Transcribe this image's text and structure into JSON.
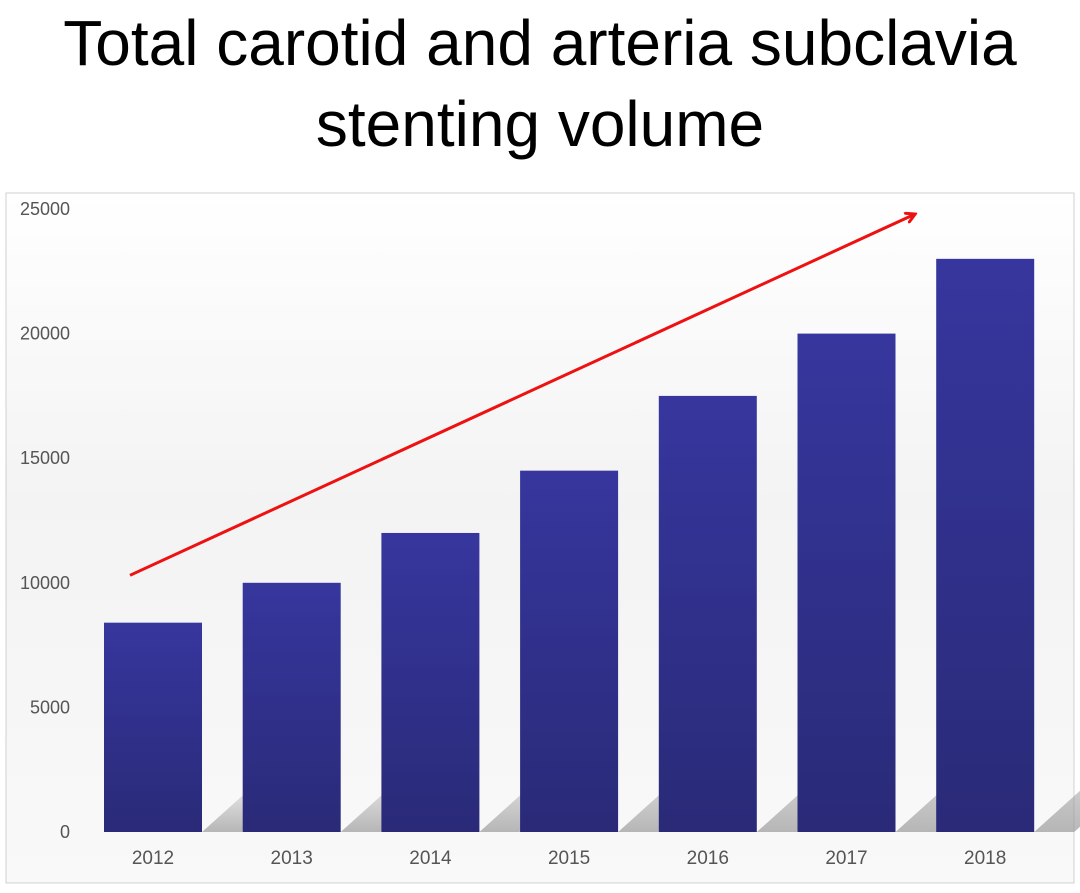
{
  "title": {
    "line1": "Total carotid and arteria subclavia",
    "line2": "stenting volume"
  },
  "colors": {
    "bar_top": "#36369e",
    "bar_bottom": "#2a2a78",
    "trend_arrow": "#ee1111",
    "axis_text": "#555555",
    "shadow": "#9a9a9a"
  },
  "chart_data": {
    "type": "bar",
    "title": "Total carotid and arteria subclavia stenting volume",
    "xlabel": "",
    "ylabel": "",
    "categories": [
      "2012",
      "2013",
      "2014",
      "2015",
      "2016",
      "2017",
      "2018"
    ],
    "values": [
      8400,
      10000,
      12000,
      14500,
      17500,
      20000,
      23000
    ],
    "ylim": [
      0,
      25000
    ],
    "yticks": [
      0,
      5000,
      10000,
      15000,
      20000,
      25000
    ],
    "grid": false,
    "legend": "none",
    "annotations": [
      {
        "type": "trend-arrow",
        "from": {
          "category": "2012",
          "value": 10300
        },
        "to": {
          "category": "2018",
          "value": 24800
        }
      }
    ]
  }
}
